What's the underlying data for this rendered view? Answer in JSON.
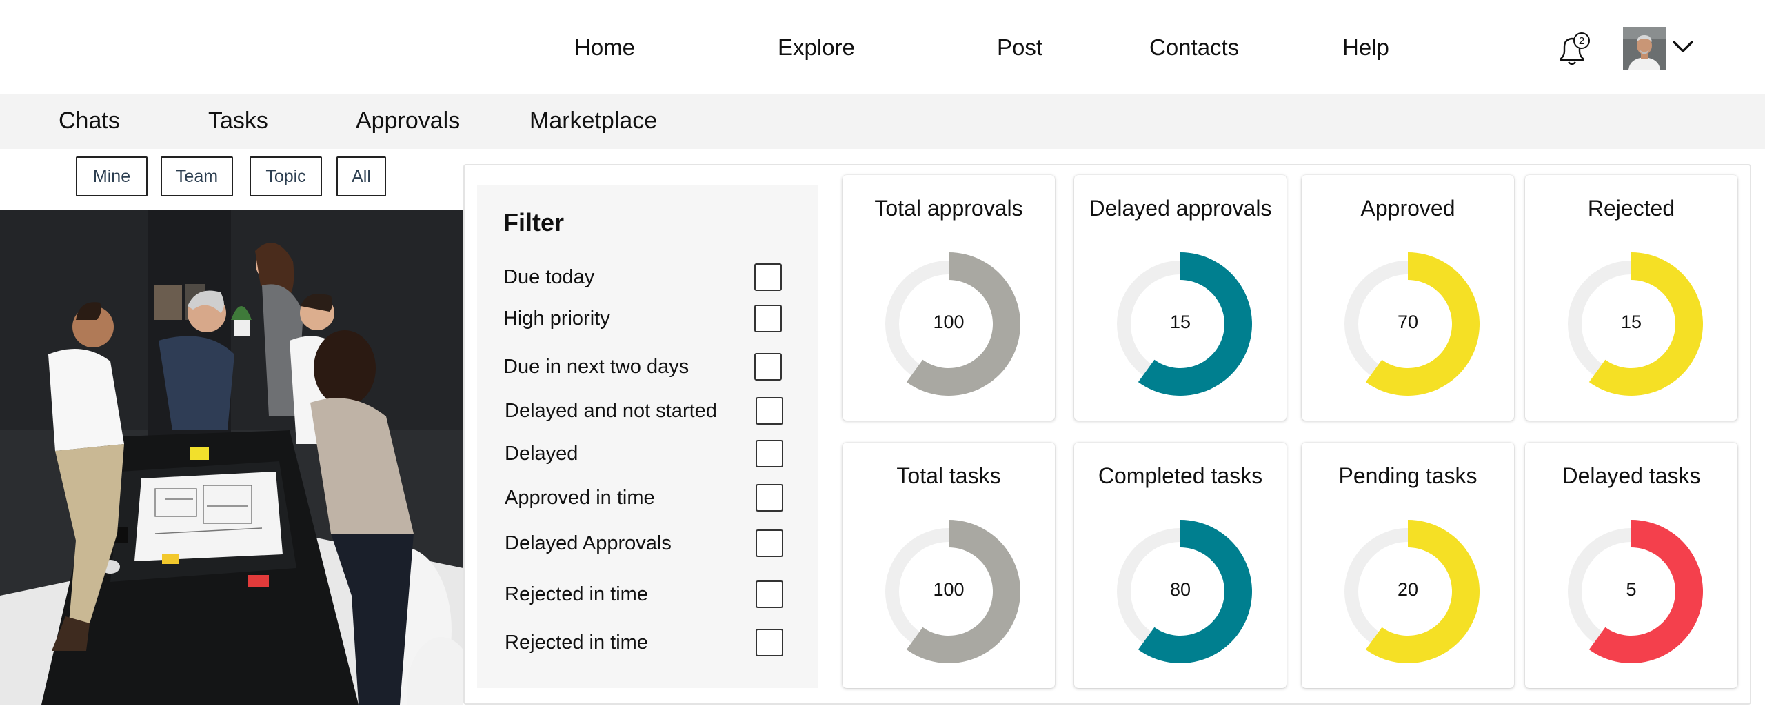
{
  "nav": {
    "items": [
      {
        "id": "home",
        "label": "Home"
      },
      {
        "id": "explore",
        "label": "Explore"
      },
      {
        "id": "post",
        "label": "Post"
      },
      {
        "id": "contacts",
        "label": "Contacts"
      },
      {
        "id": "help",
        "label": "Help"
      }
    ],
    "notification_count": "2"
  },
  "subnav": {
    "items": [
      {
        "id": "chats",
        "label": "Chats"
      },
      {
        "id": "tasks",
        "label": "Tasks"
      },
      {
        "id": "approvals",
        "label": "Approvals"
      },
      {
        "id": "marketplace",
        "label": "Marketplace"
      }
    ]
  },
  "scope": {
    "buttons": [
      {
        "id": "mine",
        "label": "Mine"
      },
      {
        "id": "team",
        "label": "Team"
      },
      {
        "id": "topic",
        "label": "Topic"
      },
      {
        "id": "all",
        "label": "All"
      }
    ]
  },
  "filter": {
    "title": "Filter",
    "options": [
      {
        "label": "Due today",
        "checked": false
      },
      {
        "label": "High priority",
        "checked": false
      },
      {
        "label": "Due in next two days",
        "checked": false
      },
      {
        "label": "Delayed and not started",
        "checked": false
      },
      {
        "label": "Delayed",
        "checked": false
      },
      {
        "label": "Approved in time",
        "checked": false
      },
      {
        "label": "Delayed Approvals",
        "checked": false
      },
      {
        "label": "Rejected in time",
        "checked": false
      },
      {
        "label": "Rejected in time",
        "checked": false
      }
    ]
  },
  "colors": {
    "gray": "#a9a8a2",
    "teal": "#007f8f",
    "yellow": "#f5e025",
    "red": "#f4404c",
    "track": "#efefef"
  },
  "stats": [
    {
      "title": "Total approvals",
      "value": "100",
      "fraction": 0.6,
      "color": "#a9a8a2"
    },
    {
      "title": "Delayed approvals",
      "value": "15",
      "fraction": 0.6,
      "color": "#007f8f"
    },
    {
      "title": "Approved",
      "value": "70",
      "fraction": 0.6,
      "color": "#f5e025"
    },
    {
      "title": "Rejected",
      "value": "15",
      "fraction": 0.6,
      "color": "#f5e025"
    },
    {
      "title": "Total tasks",
      "value": "100",
      "fraction": 0.6,
      "color": "#a9a8a2"
    },
    {
      "title": "Completed tasks",
      "value": "80",
      "fraction": 0.6,
      "color": "#007f8f"
    },
    {
      "title": "Pending tasks",
      "value": "20",
      "fraction": 0.6,
      "color": "#f5e025"
    },
    {
      "title": "Delayed tasks",
      "value": "5",
      "fraction": 0.6,
      "color": "#f4404c"
    }
  ]
}
